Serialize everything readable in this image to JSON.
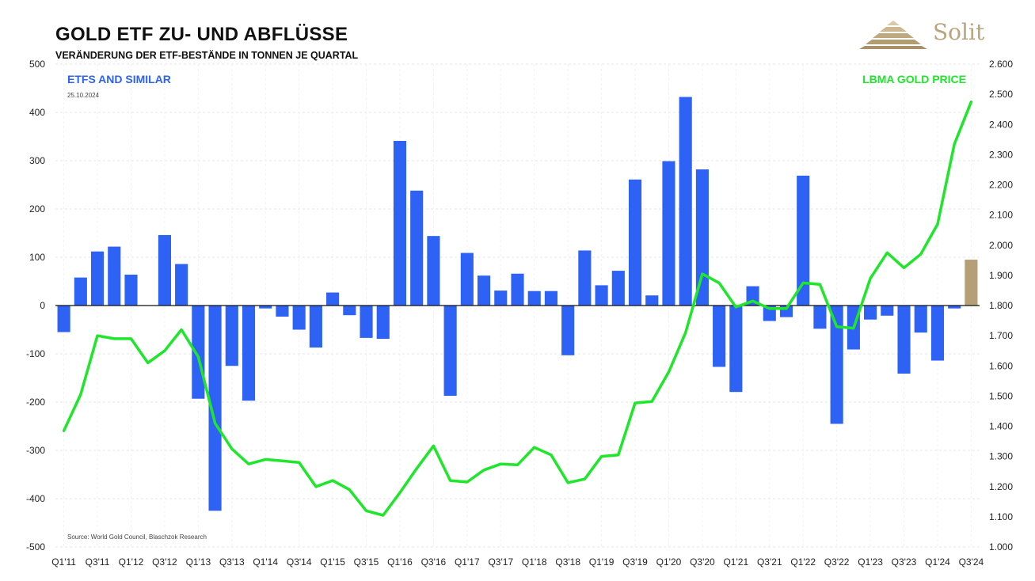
{
  "header": {
    "title": "GOLD ETF ZU- UND ABFLÜSSE",
    "subtitle": "VERÄNDERUNG DER ETF-BESTÄNDE IN TONNEN JE QUARTAL",
    "logo_text": "Solit"
  },
  "colors": {
    "bar": "#2e62f5",
    "bar_last": "#b59f76",
    "line": "#1ee62a",
    "label_left": "#2e62f5",
    "label_right": "#1ee62a",
    "grid": "#e6e6e6",
    "logo": "#b9a57d"
  },
  "chart_data": {
    "type": "bar+line",
    "title": "GOLD ETF ZU- UND ABFLÜSSE",
    "subtitle": "VERÄNDERUNG DER ETF-BESTÄNDE IN TONNEN JE QUARTAL",
    "date": "25.10.2024",
    "source": "Source:  World  Gold Council, Blaschzok Research",
    "left_label": "ETFS AND SIMILAR",
    "right_label": "LBMA GOLD PRICE",
    "categories": [
      "Q1'11",
      "Q2'11",
      "Q3'11",
      "Q4'11",
      "Q1'12",
      "Q2'12",
      "Q3'12",
      "Q4'12",
      "Q1'13",
      "Q2'13",
      "Q3'13",
      "Q4'13",
      "Q1'14",
      "Q2'14",
      "Q3'14",
      "Q4'14",
      "Q1'15",
      "Q2'15",
      "Q3'15",
      "Q4'15",
      "Q1'16",
      "Q2'16",
      "Q3'16",
      "Q4'16",
      "Q1'17",
      "Q2'17",
      "Q3'17",
      "Q4'17",
      "Q1'18",
      "Q2'18",
      "Q3'18",
      "Q4'18",
      "Q1'19",
      "Q2'19",
      "Q3'19",
      "Q4'19",
      "Q1'20",
      "Q2'20",
      "Q3'20",
      "Q4'20",
      "Q1'21",
      "Q2'21",
      "Q3'21",
      "Q4'21",
      "Q1'22",
      "Q2'22",
      "Q3'22",
      "Q4'22",
      "Q1'23",
      "Q2'23",
      "Q3'23",
      "Q4'23",
      "Q1'24",
      "Q2'24",
      "Q3'24"
    ],
    "x_tick_labels": [
      "Q1'11",
      "Q3'11",
      "Q1'12",
      "Q3'12",
      "Q1'13",
      "Q3'13",
      "Q1'14",
      "Q3'14",
      "Q1'15",
      "Q3'15",
      "Q1'16",
      "Q3'16",
      "Q1'17",
      "Q3'17",
      "Q1'18",
      "Q3'18",
      "Q1'19",
      "Q3'19",
      "Q1'20",
      "Q3'20",
      "Q1'21",
      "Q3'21",
      "Q1'22",
      "Q3'22",
      "Q1'23",
      "Q3'23",
      "Q1'24",
      "Q3'24"
    ],
    "series": [
      {
        "name": "ETFS AND SIMILAR",
        "axis": "left",
        "type": "bar",
        "values": [
          -55,
          58,
          112,
          122,
          64,
          0,
          146,
          86,
          -193,
          -425,
          -125,
          -197,
          -6,
          -23,
          -50,
          -87,
          27,
          -20,
          -67,
          -69,
          341,
          238,
          144,
          -187,
          109,
          62,
          31,
          66,
          30,
          30,
          -103,
          114,
          42,
          72,
          261,
          21,
          299,
          432,
          282,
          -127,
          -179,
          40,
          -32,
          -24,
          269,
          -48,
          -245,
          -91,
          -29,
          -21,
          -141,
          -56,
          -114,
          -6,
          95
        ]
      },
      {
        "name": "LBMA GOLD PRICE",
        "axis": "right",
        "type": "line",
        "values": [
          1385,
          1505,
          1700,
          1690,
          1690,
          1610,
          1650,
          1720,
          1630,
          1410,
          1325,
          1275,
          1290,
          1285,
          1280,
          1200,
          1220,
          1190,
          1120,
          1105,
          1180,
          1260,
          1335,
          1220,
          1215,
          1255,
          1275,
          1272,
          1330,
          1305,
          1213,
          1225,
          1300,
          1305,
          1477,
          1482,
          1580,
          1710,
          1905,
          1875,
          1795,
          1815,
          1790,
          1790,
          1875,
          1870,
          1730,
          1725,
          1890,
          1975,
          1925,
          1970,
          2070,
          2335,
          2475
        ]
      }
    ],
    "y_left": {
      "min": -500,
      "max": 500,
      "step": 100,
      "tick_labels": [
        "-500",
        "-400",
        "-300",
        "-200",
        "-100",
        "0",
        "100",
        "200",
        "300",
        "400",
        "500"
      ]
    },
    "y_right": {
      "min": 1000,
      "max": 2600,
      "step": 100,
      "tick_labels": [
        "1.000",
        "1.100",
        "1.200",
        "1.300",
        "1.400",
        "1.500",
        "1.600",
        "1.700",
        "1.800",
        "1.900",
        "2.000",
        "2.100",
        "2.200",
        "2.300",
        "2.400",
        "2.500",
        "2.600"
      ]
    },
    "grid": true
  }
}
